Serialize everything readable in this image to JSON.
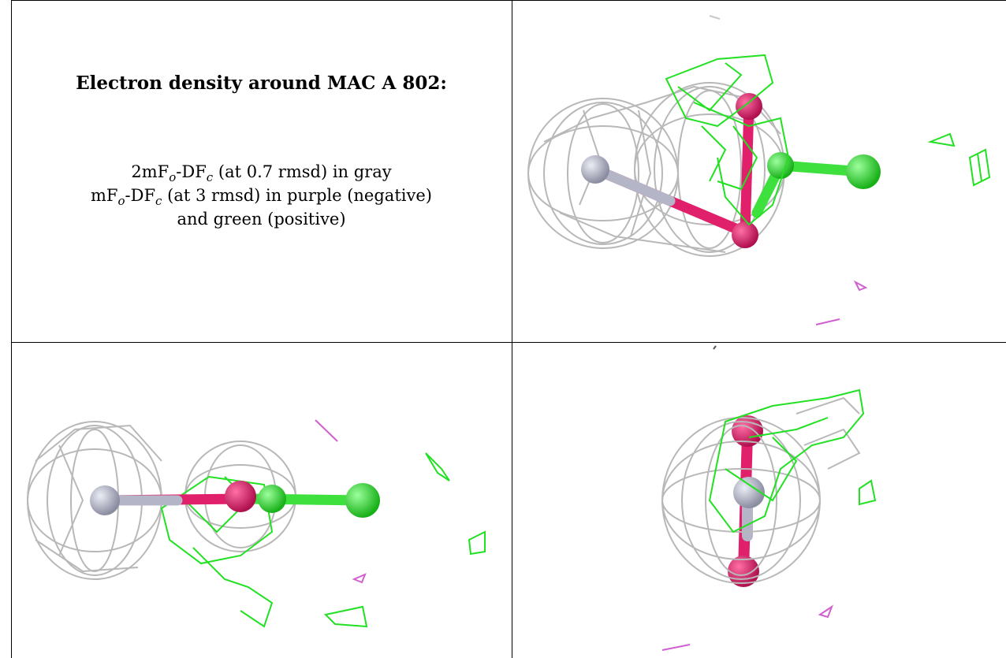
{
  "caption": {
    "title": "Electron density around MAC A 802:",
    "line1_prefix": "2mF",
    "line1_sub1": "o",
    "line1_mid": "-DF",
    "line1_sub2": "c",
    "line1_suffix": " (at 0.7 rmsd) in gray",
    "line2_prefix": "mF",
    "line2_sub1": "o",
    "line2_mid": "-DF",
    "line2_sub2": "c",
    "line2_suffix": " (at 3 rmsd) in purple (negative)",
    "line3": "and green (positive)"
  },
  "colors": {
    "density_2fofc": "#b8b8b8",
    "density_positive": "#22e022",
    "density_negative": "#d060d0",
    "atom_gray": "#b4b6c8",
    "atom_pink": "#e0206a",
    "atom_green": "#3ee03e"
  }
}
